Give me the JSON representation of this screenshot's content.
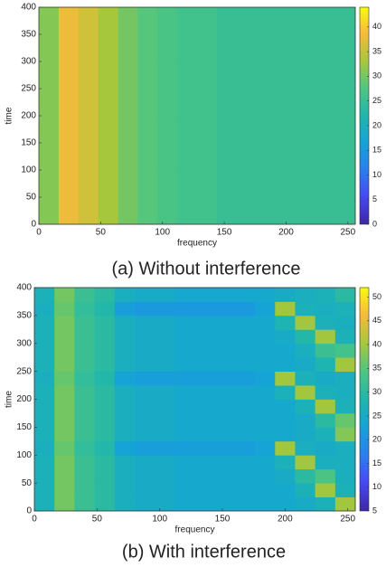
{
  "chart_data": [
    {
      "type": "heatmap",
      "caption": "(a) Without interference",
      "xlabel": "frequency",
      "ylabel": "time",
      "colormap": "parula",
      "x": [
        0,
        16,
        32,
        48,
        64,
        80,
        96,
        112,
        128,
        144,
        160,
        176,
        192,
        208,
        224,
        240,
        256
      ],
      "y": [
        0,
        100,
        200,
        300,
        400
      ],
      "values": [
        [
          31,
          38,
          36,
          33,
          30,
          28,
          27,
          26,
          26,
          25,
          25,
          25,
          25,
          25,
          25,
          25
        ],
        [
          31,
          38,
          36,
          33,
          30,
          28,
          27,
          26,
          26,
          25,
          25,
          25,
          25,
          25,
          25,
          25
        ],
        [
          31,
          38,
          36,
          33,
          30,
          28,
          27,
          26,
          26,
          25,
          25,
          25,
          25,
          25,
          25,
          25
        ],
        [
          31,
          38,
          36,
          33,
          30,
          28,
          27,
          26,
          26,
          25,
          25,
          25,
          25,
          25,
          25,
          25
        ]
      ],
      "xlim": [
        0,
        256
      ],
      "ylim": [
        0,
        400
      ],
      "xticks": [
        0,
        50,
        100,
        150,
        200,
        250
      ],
      "yticks": [
        0,
        50,
        100,
        150,
        200,
        250,
        300,
        350,
        400
      ],
      "clim": [
        0,
        44
      ],
      "cticks": [
        0,
        5,
        10,
        15,
        20,
        25,
        30,
        35,
        40
      ]
    },
    {
      "type": "heatmap",
      "caption": "(b) With interference",
      "xlabel": "frequency",
      "ylabel": "time",
      "colormap": "parula",
      "x": [
        0,
        16,
        32,
        48,
        64,
        80,
        96,
        112,
        128,
        144,
        160,
        176,
        192,
        208,
        224,
        240,
        256
      ],
      "y": [
        0,
        25,
        50,
        75,
        100,
        125,
        150,
        175,
        200,
        225,
        250,
        275,
        300,
        325,
        350,
        375,
        400
      ],
      "values": [
        [
          27,
          37,
          32,
          30,
          26,
          25,
          25,
          24,
          24,
          24,
          24,
          24,
          24,
          25,
          27,
          40
        ],
        [
          27,
          37,
          32,
          30,
          26,
          25,
          25,
          24,
          24,
          24,
          24,
          24,
          24,
          27,
          40,
          27
        ],
        [
          27,
          37,
          32,
          30,
          26,
          25,
          25,
          24,
          24,
          24,
          24,
          24,
          25,
          30,
          34,
          26
        ],
        [
          27,
          37,
          32,
          30,
          26,
          25,
          25,
          24,
          24,
          24,
          24,
          24,
          27,
          40,
          26,
          26
        ],
        [
          26,
          36,
          31,
          29,
          23,
          22,
          22,
          22,
          22,
          22,
          22,
          23,
          40,
          26,
          25,
          26
        ],
        [
          27,
          37,
          32,
          30,
          26,
          25,
          25,
          24,
          24,
          24,
          24,
          24,
          24,
          25,
          27,
          38
        ],
        [
          27,
          37,
          32,
          30,
          26,
          25,
          25,
          24,
          24,
          24,
          24,
          24,
          24,
          25,
          30,
          36
        ],
        [
          27,
          37,
          32,
          30,
          26,
          25,
          25,
          24,
          24,
          24,
          24,
          24,
          24,
          27,
          40,
          27
        ],
        [
          27,
          37,
          32,
          30,
          26,
          25,
          25,
          24,
          24,
          24,
          24,
          24,
          27,
          40,
          27,
          26
        ],
        [
          26,
          36,
          31,
          29,
          23,
          22,
          22,
          22,
          22,
          22,
          22,
          23,
          40,
          27,
          25,
          26
        ],
        [
          27,
          37,
          32,
          30,
          26,
          25,
          25,
          24,
          24,
          24,
          24,
          24,
          24,
          25,
          28,
          40
        ],
        [
          27,
          37,
          32,
          30,
          26,
          25,
          25,
          24,
          24,
          24,
          24,
          24,
          24,
          26,
          32,
          33
        ],
        [
          27,
          37,
          32,
          30,
          26,
          25,
          25,
          24,
          24,
          24,
          24,
          24,
          25,
          29,
          40,
          27
        ],
        [
          27,
          37,
          32,
          30,
          26,
          25,
          25,
          24,
          24,
          24,
          24,
          24,
          28,
          40,
          27,
          26
        ],
        [
          26,
          36,
          31,
          29,
          22,
          21,
          21,
          21,
          21,
          21,
          21,
          23,
          40,
          27,
          26,
          27
        ],
        [
          27,
          37,
          32,
          30,
          26,
          25,
          25,
          24,
          24,
          24,
          24,
          24,
          25,
          26,
          27,
          30
        ]
      ],
      "xlim": [
        0,
        256
      ],
      "ylim": [
        0,
        400
      ],
      "xticks": [
        0,
        50,
        100,
        150,
        200,
        250
      ],
      "yticks": [
        0,
        50,
        100,
        150,
        200,
        250,
        300,
        350,
        400
      ],
      "clim": [
        5,
        52
      ],
      "cticks": [
        5,
        10,
        15,
        20,
        25,
        30,
        35,
        40,
        45,
        50
      ]
    }
  ]
}
